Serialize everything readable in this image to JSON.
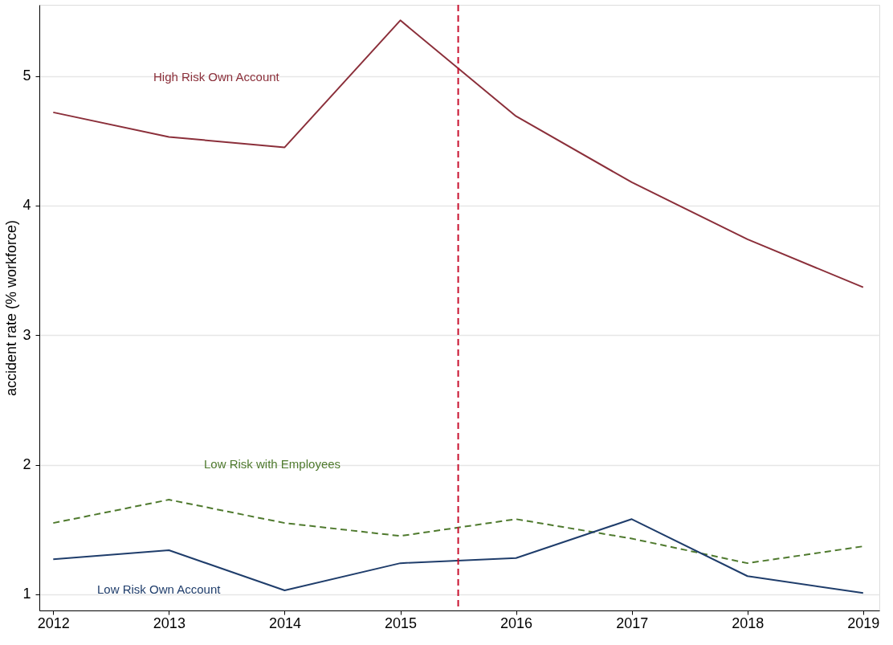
{
  "chart_data": {
    "type": "line",
    "ylabel": "accident rate (% workforce)",
    "x": [
      2012,
      2013,
      2014,
      2015,
      2016,
      2017,
      2018,
      2019
    ],
    "series": [
      {
        "name": "High Risk Own Account",
        "color": "#8b2f3a",
        "line_style": "solid",
        "values": [
          4.72,
          4.53,
          4.45,
          5.43,
          4.69,
          4.18,
          3.74,
          3.37
        ]
      },
      {
        "name": "Low Risk with Employees",
        "color": "#4f7a2e",
        "line_style": "dashed",
        "values": [
          1.55,
          1.73,
          1.55,
          1.45,
          1.58,
          1.43,
          1.24,
          1.37
        ]
      },
      {
        "name": "Low Risk Own Account",
        "color": "#1f3d6b",
        "line_style": "solid",
        "values": [
          1.27,
          1.34,
          1.03,
          1.24,
          1.28,
          1.58,
          1.14,
          1.01
        ]
      }
    ],
    "ref_lines": [
      {
        "axis": "x",
        "value": 2015.5,
        "color": "#c8102e",
        "line_style": "dashed"
      }
    ],
    "xlim": [
      2011.88,
      2019.14
    ],
    "xticks": [
      2012,
      2013,
      2014,
      2015,
      2016,
      2017,
      2018,
      2019
    ],
    "ylim": [
      0.875,
      5.55
    ],
    "yticks": [
      1,
      2,
      3,
      4,
      5
    ],
    "grid": "y",
    "marker": "none"
  }
}
